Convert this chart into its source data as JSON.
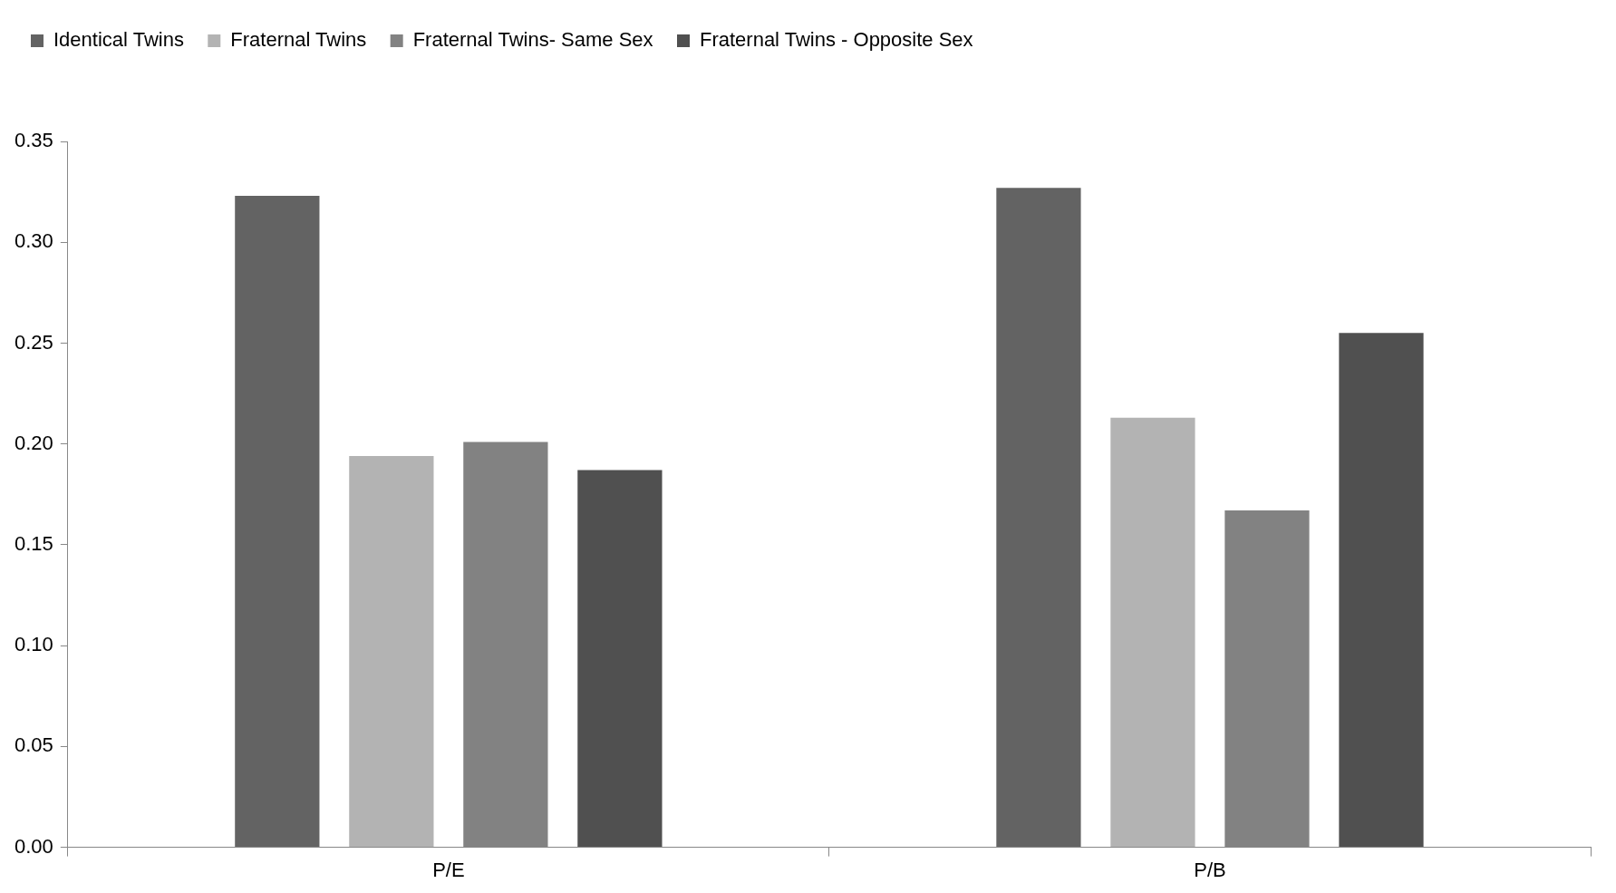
{
  "chart_data": {
    "type": "bar",
    "categories": [
      "P/E",
      "P/B"
    ],
    "series": [
      {
        "name": "Identical Twins",
        "color": "#636363",
        "values": [
          0.323,
          0.327
        ]
      },
      {
        "name": "Fraternal Twins",
        "color": "#b3b3b3",
        "values": [
          0.194,
          0.213
        ]
      },
      {
        "name": "Fraternal Twins- Same Sex",
        "color": "#828282",
        "values": [
          0.201,
          0.167
        ]
      },
      {
        "name": "Fraternal Twins - Opposite Sex",
        "color": "#505050",
        "values": [
          0.187,
          0.255
        ]
      }
    ],
    "ylim": [
      0,
      0.35
    ],
    "yticks": [
      {
        "value": 0,
        "label": "0.00"
      },
      {
        "value": 0.05,
        "label": "0.05"
      },
      {
        "value": 0.1,
        "label": "0.10"
      },
      {
        "value": 0.15,
        "label": "0.15"
      },
      {
        "value": 0.2,
        "label": "0.20"
      },
      {
        "value": 0.25,
        "label": "0.25"
      },
      {
        "value": 0.3,
        "label": "0.30"
      },
      {
        "value": 0.35,
        "label": "0.35"
      }
    ],
    "grid": false,
    "legend": "top left"
  }
}
